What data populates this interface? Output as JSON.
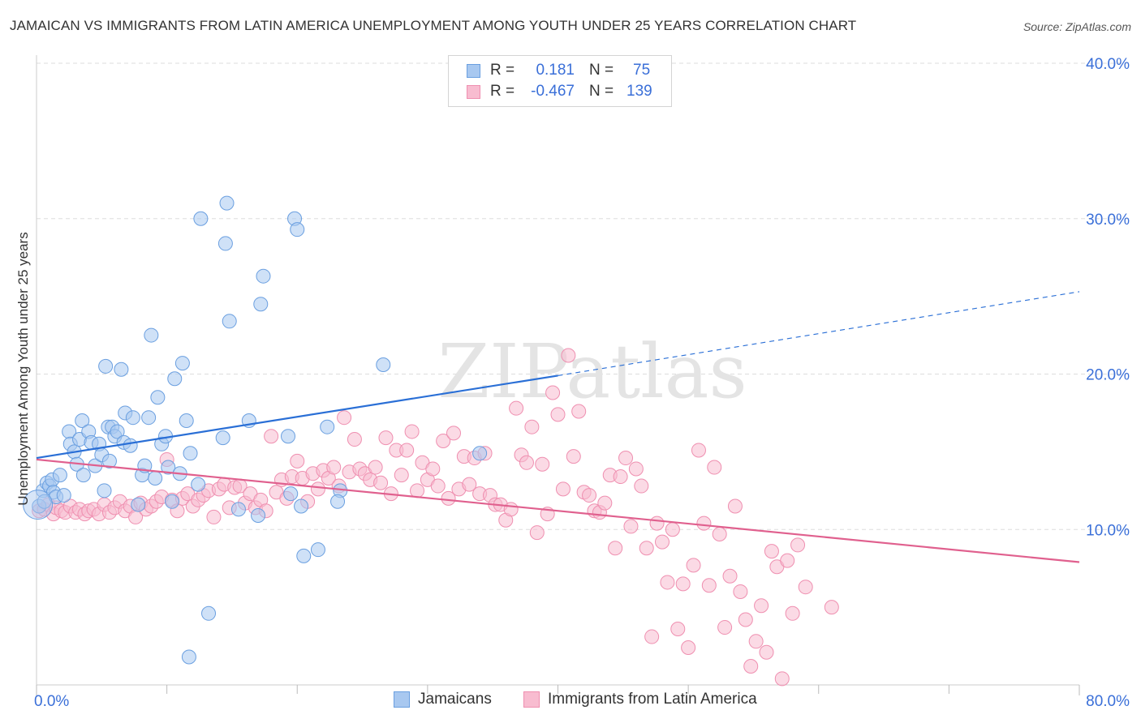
{
  "title": "JAMAICAN VS IMMIGRANTS FROM LATIN AMERICA UNEMPLOYMENT AMONG YOUTH UNDER 25 YEARS CORRELATION CHART",
  "source": "Source: ZipAtlas.com",
  "watermark": "ZIPatlas",
  "legend": {
    "rows": [
      {
        "r_label": "R =",
        "r_value": "0.181",
        "n_label": "N =",
        "n_value": "75"
      },
      {
        "r_label": "R =",
        "r_value": "-0.467",
        "n_label": "N =",
        "n_value": "139"
      }
    ]
  },
  "colors": {
    "jamaicans_fill": "#a8c8f0",
    "jamaicans_stroke": "#6a9fe0",
    "jamaicans_line": "#2a6fd6",
    "latin_fill": "#f8bcd0",
    "latin_stroke": "#ef8fb0",
    "latin_line": "#e0608e",
    "tick_label": "#3a6fd8",
    "grid": "#dddddd"
  },
  "chart_data": {
    "type": "scatter",
    "xlabel": "",
    "ylabel": "Unemployment Among Youth under 25 years",
    "xlim": [
      0,
      80
    ],
    "ylim": [
      0,
      40
    ],
    "x_tick_labels": [
      {
        "value": 0,
        "label": "0.0%"
      },
      {
        "value": 80,
        "label": "80.0%"
      }
    ],
    "y_tick_labels": [
      {
        "value": 10,
        "label": "10.0%"
      },
      {
        "value": 20,
        "label": "20.0%"
      },
      {
        "value": 30,
        "label": "30.0%"
      },
      {
        "value": 40,
        "label": "40.0%"
      }
    ],
    "grid": true,
    "series": [
      {
        "name": "Jamaicans",
        "r": 0.181,
        "n": 75,
        "trend": {
          "x_start": 0,
          "y_start": 14.6,
          "x_solid_end": 40,
          "y_solid_end": 19.9,
          "x_end": 80,
          "y_end": 25.3
        },
        "points": [
          [
            0.2,
            11.5
          ],
          [
            0.5,
            12.5
          ],
          [
            0.6,
            11.8
          ],
          [
            0.8,
            13.0
          ],
          [
            1.0,
            12.8
          ],
          [
            1.2,
            13.2
          ],
          [
            1.3,
            12.4
          ],
          [
            1.5,
            12.1
          ],
          [
            1.8,
            13.5
          ],
          [
            2.1,
            12.2
          ],
          [
            2.5,
            16.3
          ],
          [
            2.6,
            15.5
          ],
          [
            2.9,
            15.0
          ],
          [
            3.1,
            14.2
          ],
          [
            3.3,
            15.8
          ],
          [
            3.5,
            17.0
          ],
          [
            3.6,
            13.5
          ],
          [
            4.0,
            16.3
          ],
          [
            4.2,
            15.6
          ],
          [
            4.5,
            14.1
          ],
          [
            4.8,
            15.5
          ],
          [
            5.0,
            14.8
          ],
          [
            5.2,
            12.5
          ],
          [
            5.3,
            20.5
          ],
          [
            5.5,
            16.6
          ],
          [
            5.6,
            14.4
          ],
          [
            5.8,
            16.6
          ],
          [
            6.0,
            16.0
          ],
          [
            6.2,
            16.3
          ],
          [
            6.5,
            20.3
          ],
          [
            6.7,
            15.6
          ],
          [
            6.8,
            17.5
          ],
          [
            7.2,
            15.4
          ],
          [
            7.4,
            17.2
          ],
          [
            7.8,
            11.6
          ],
          [
            8.1,
            13.5
          ],
          [
            8.3,
            14.1
          ],
          [
            8.6,
            17.2
          ],
          [
            8.8,
            22.5
          ],
          [
            9.1,
            13.3
          ],
          [
            9.3,
            18.5
          ],
          [
            9.6,
            15.5
          ],
          [
            9.9,
            16.0
          ],
          [
            10.1,
            14.0
          ],
          [
            10.4,
            11.8
          ],
          [
            10.6,
            19.7
          ],
          [
            11.0,
            13.6
          ],
          [
            11.2,
            20.7
          ],
          [
            11.5,
            17.0
          ],
          [
            11.7,
            1.8
          ],
          [
            11.8,
            14.9
          ],
          [
            12.4,
            12.9
          ],
          [
            12.6,
            30.0
          ],
          [
            13.2,
            4.6
          ],
          [
            14.3,
            15.9
          ],
          [
            14.5,
            28.4
          ],
          [
            14.6,
            31.0
          ],
          [
            14.8,
            23.4
          ],
          [
            15.5,
            11.3
          ],
          [
            16.3,
            17.0
          ],
          [
            17.0,
            10.9
          ],
          [
            17.2,
            24.5
          ],
          [
            17.4,
            26.3
          ],
          [
            19.3,
            16.0
          ],
          [
            19.5,
            12.3
          ],
          [
            19.8,
            30.0
          ],
          [
            20.0,
            29.3
          ],
          [
            20.3,
            11.5
          ],
          [
            20.5,
            8.3
          ],
          [
            21.6,
            8.7
          ],
          [
            22.3,
            16.6
          ],
          [
            23.3,
            12.5
          ],
          [
            23.1,
            11.8
          ],
          [
            26.6,
            20.6
          ],
          [
            34.0,
            14.9
          ]
        ]
      },
      {
        "name": "Immigrants from Latin America",
        "r": -0.467,
        "n": 139,
        "trend": {
          "x_start": 0,
          "y_start": 14.5,
          "x_end": 80,
          "y_end": 7.9
        },
        "points": [
          [
            0.2,
            11.2
          ],
          [
            0.6,
            11.3
          ],
          [
            0.9,
            11.6
          ],
          [
            1.3,
            11.0
          ],
          [
            1.5,
            11.4
          ],
          [
            1.9,
            11.2
          ],
          [
            2.2,
            11.1
          ],
          [
            2.6,
            11.5
          ],
          [
            3.0,
            11.1
          ],
          [
            3.3,
            11.3
          ],
          [
            3.7,
            11.0
          ],
          [
            4.0,
            11.2
          ],
          [
            4.4,
            11.3
          ],
          [
            4.8,
            11.0
          ],
          [
            5.2,
            11.6
          ],
          [
            5.6,
            11.1
          ],
          [
            6.0,
            11.4
          ],
          [
            6.4,
            11.8
          ],
          [
            6.8,
            11.2
          ],
          [
            7.2,
            11.5
          ],
          [
            7.6,
            10.8
          ],
          [
            8.0,
            11.7
          ],
          [
            8.4,
            11.3
          ],
          [
            8.8,
            11.5
          ],
          [
            9.2,
            11.8
          ],
          [
            9.6,
            12.1
          ],
          [
            10.0,
            14.5
          ],
          [
            10.4,
            11.9
          ],
          [
            10.8,
            11.2
          ],
          [
            11.2,
            12.0
          ],
          [
            11.6,
            12.3
          ],
          [
            12.0,
            11.5
          ],
          [
            12.4,
            11.9
          ],
          [
            12.8,
            12.2
          ],
          [
            13.2,
            12.5
          ],
          [
            13.6,
            10.8
          ],
          [
            14.0,
            12.6
          ],
          [
            14.4,
            12.9
          ],
          [
            14.8,
            11.4
          ],
          [
            15.2,
            12.7
          ],
          [
            15.6,
            12.8
          ],
          [
            16.0,
            11.7
          ],
          [
            16.4,
            12.3
          ],
          [
            16.8,
            11.4
          ],
          [
            17.2,
            11.9
          ],
          [
            17.6,
            11.2
          ],
          [
            18.0,
            16.0
          ],
          [
            18.4,
            12.4
          ],
          [
            18.8,
            13.2
          ],
          [
            19.2,
            12.0
          ],
          [
            19.6,
            13.4
          ],
          [
            20.0,
            14.4
          ],
          [
            20.4,
            13.3
          ],
          [
            20.8,
            11.8
          ],
          [
            21.2,
            13.6
          ],
          [
            21.6,
            12.6
          ],
          [
            22.0,
            13.8
          ],
          [
            22.4,
            13.3
          ],
          [
            22.8,
            14.0
          ],
          [
            23.2,
            12.8
          ],
          [
            23.6,
            17.2
          ],
          [
            24.0,
            13.7
          ],
          [
            24.4,
            15.8
          ],
          [
            24.8,
            13.9
          ],
          [
            25.2,
            13.6
          ],
          [
            25.6,
            13.2
          ],
          [
            26.0,
            14.0
          ],
          [
            26.4,
            13.0
          ],
          [
            26.8,
            15.9
          ],
          [
            27.2,
            12.3
          ],
          [
            27.6,
            15.1
          ],
          [
            28.0,
            13.5
          ],
          [
            28.4,
            15.1
          ],
          [
            28.8,
            16.3
          ],
          [
            29.2,
            12.5
          ],
          [
            29.6,
            14.3
          ],
          [
            30.0,
            13.2
          ],
          [
            30.4,
            13.9
          ],
          [
            30.8,
            12.8
          ],
          [
            31.2,
            15.7
          ],
          [
            31.6,
            12.0
          ],
          [
            32.0,
            16.2
          ],
          [
            32.4,
            12.6
          ],
          [
            32.8,
            14.7
          ],
          [
            33.2,
            12.9
          ],
          [
            33.6,
            14.6
          ],
          [
            34.0,
            12.3
          ],
          [
            34.4,
            14.9
          ],
          [
            34.8,
            12.2
          ],
          [
            35.2,
            11.6
          ],
          [
            35.6,
            11.6
          ],
          [
            36.0,
            10.6
          ],
          [
            36.4,
            11.3
          ],
          [
            36.8,
            17.8
          ],
          [
            37.2,
            14.8
          ],
          [
            37.6,
            14.3
          ],
          [
            38.0,
            16.6
          ],
          [
            38.4,
            9.8
          ],
          [
            38.8,
            14.2
          ],
          [
            39.2,
            11.0
          ],
          [
            39.6,
            18.8
          ],
          [
            40.0,
            17.4
          ],
          [
            40.4,
            12.6
          ],
          [
            40.8,
            21.2
          ],
          [
            41.2,
            14.7
          ],
          [
            41.6,
            17.6
          ],
          [
            42.0,
            12.4
          ],
          [
            42.4,
            12.2
          ],
          [
            42.8,
            11.2
          ],
          [
            43.2,
            11.1
          ],
          [
            43.6,
            11.7
          ],
          [
            44.0,
            13.5
          ],
          [
            44.4,
            8.8
          ],
          [
            44.8,
            13.4
          ],
          [
            45.2,
            14.6
          ],
          [
            45.6,
            10.2
          ],
          [
            46.0,
            13.9
          ],
          [
            46.4,
            12.8
          ],
          [
            46.8,
            8.8
          ],
          [
            47.2,
            3.1
          ],
          [
            47.6,
            10.4
          ],
          [
            48.0,
            9.2
          ],
          [
            48.4,
            6.6
          ],
          [
            48.8,
            10.0
          ],
          [
            49.2,
            3.6
          ],
          [
            49.6,
            6.5
          ],
          [
            50.0,
            2.4
          ],
          [
            50.4,
            7.7
          ],
          [
            50.8,
            15.1
          ],
          [
            51.2,
            10.4
          ],
          [
            51.6,
            6.4
          ],
          [
            52.0,
            14.0
          ],
          [
            52.4,
            9.7
          ],
          [
            52.8,
            3.7
          ],
          [
            53.2,
            7.0
          ],
          [
            53.6,
            11.5
          ],
          [
            54.0,
            6.0
          ],
          [
            54.4,
            4.2
          ],
          [
            54.8,
            1.2
          ],
          [
            55.2,
            2.8
          ],
          [
            55.6,
            5.1
          ],
          [
            56.0,
            2.1
          ],
          [
            56.4,
            8.6
          ],
          [
            56.8,
            7.6
          ],
          [
            57.2,
            0.4
          ],
          [
            57.6,
            8.0
          ],
          [
            58.0,
            4.6
          ],
          [
            58.4,
            9.0
          ],
          [
            59.0,
            6.3
          ],
          [
            61.0,
            5.0
          ]
        ]
      }
    ]
  },
  "bottom_legend": {
    "items": [
      {
        "label": "Jamaicans"
      },
      {
        "label": "Immigrants from Latin America"
      }
    ]
  }
}
